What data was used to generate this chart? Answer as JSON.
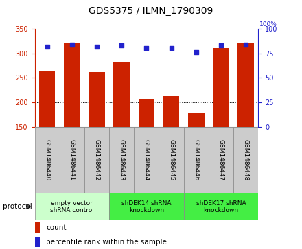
{
  "title": "GDS5375 / ILMN_1790309",
  "samples": [
    "GSM1486440",
    "GSM1486441",
    "GSM1486442",
    "GSM1486443",
    "GSM1486444",
    "GSM1486445",
    "GSM1486446",
    "GSM1486447",
    "GSM1486448"
  ],
  "counts": [
    264,
    320,
    262,
    281,
    208,
    213,
    178,
    310,
    322
  ],
  "percentiles": [
    82,
    84,
    82,
    83,
    80,
    80,
    76,
    83,
    84
  ],
  "ylim_left": [
    150,
    350
  ],
  "ylim_right": [
    0,
    100
  ],
  "yticks_left": [
    150,
    200,
    250,
    300,
    350
  ],
  "yticks_right": [
    0,
    25,
    50,
    75,
    100
  ],
  "bar_color": "#cc2200",
  "dot_color": "#2222cc",
  "groups": [
    {
      "label": "empty vector\nshRNA control",
      "start": 0,
      "end": 3,
      "color": "#ccffcc"
    },
    {
      "label": "shDEK14 shRNA\nknockdown",
      "start": 3,
      "end": 6,
      "color": "#44ee44"
    },
    {
      "label": "shDEK17 shRNA\nknockdown",
      "start": 6,
      "end": 9,
      "color": "#44ee44"
    }
  ],
  "protocol_label": "protocol",
  "legend_count": "count",
  "legend_pct": "percentile rank within the sample",
  "xlabel_area_color": "#cccccc",
  "title_fontsize": 10,
  "tick_fontsize": 7,
  "label_fontsize": 7
}
